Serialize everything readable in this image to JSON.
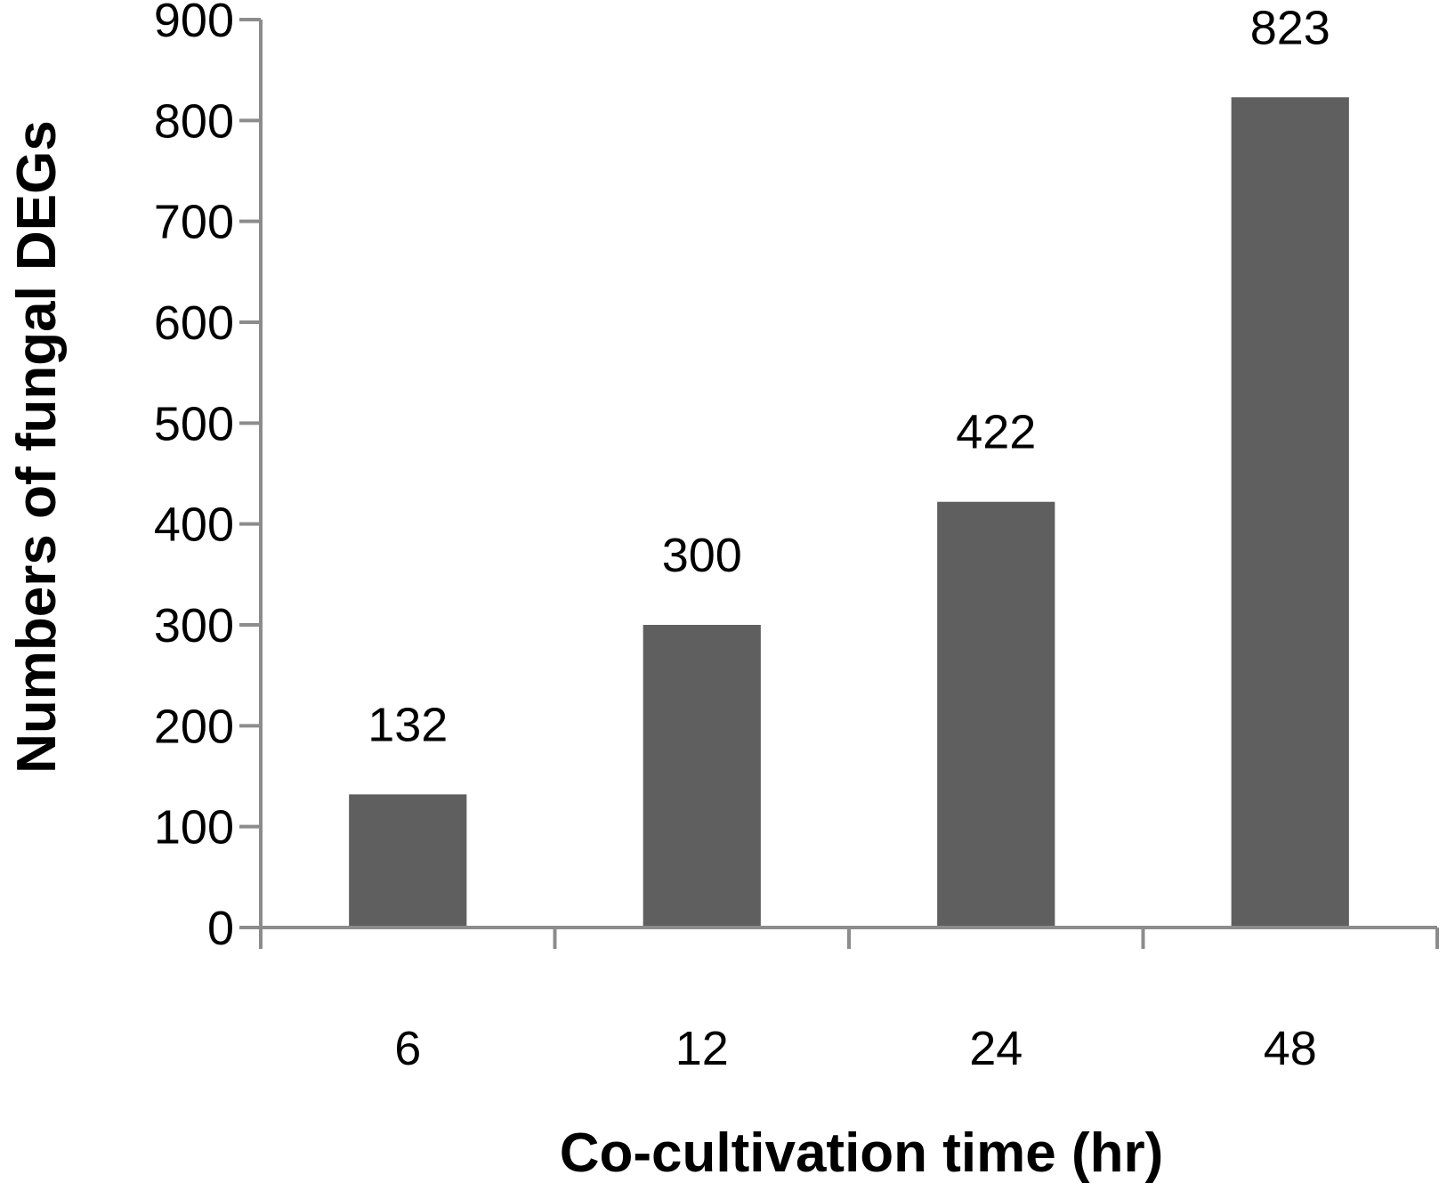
{
  "chart_data": {
    "type": "bar",
    "categories": [
      "6",
      "12",
      "24",
      "48"
    ],
    "values": [
      132,
      300,
      422,
      823
    ],
    "data_labels": [
      "132",
      "300",
      "422",
      "823"
    ],
    "title": "",
    "xlabel": "Co-cultivation time (hr)",
    "ylabel": "Numbers of fungal DEGs",
    "ylim": [
      0,
      900
    ],
    "y_ticks": [
      0,
      100,
      200,
      300,
      400,
      500,
      600,
      700,
      800,
      900
    ],
    "y_tick_labels": [
      "0",
      "100",
      "200",
      "300",
      "400",
      "500",
      "600",
      "700",
      "800",
      "900"
    ],
    "grid": false,
    "legend": "none",
    "colors": {
      "bar": "#5f5f5f",
      "axis": "#8c8c8c",
      "text": "#000000"
    }
  }
}
